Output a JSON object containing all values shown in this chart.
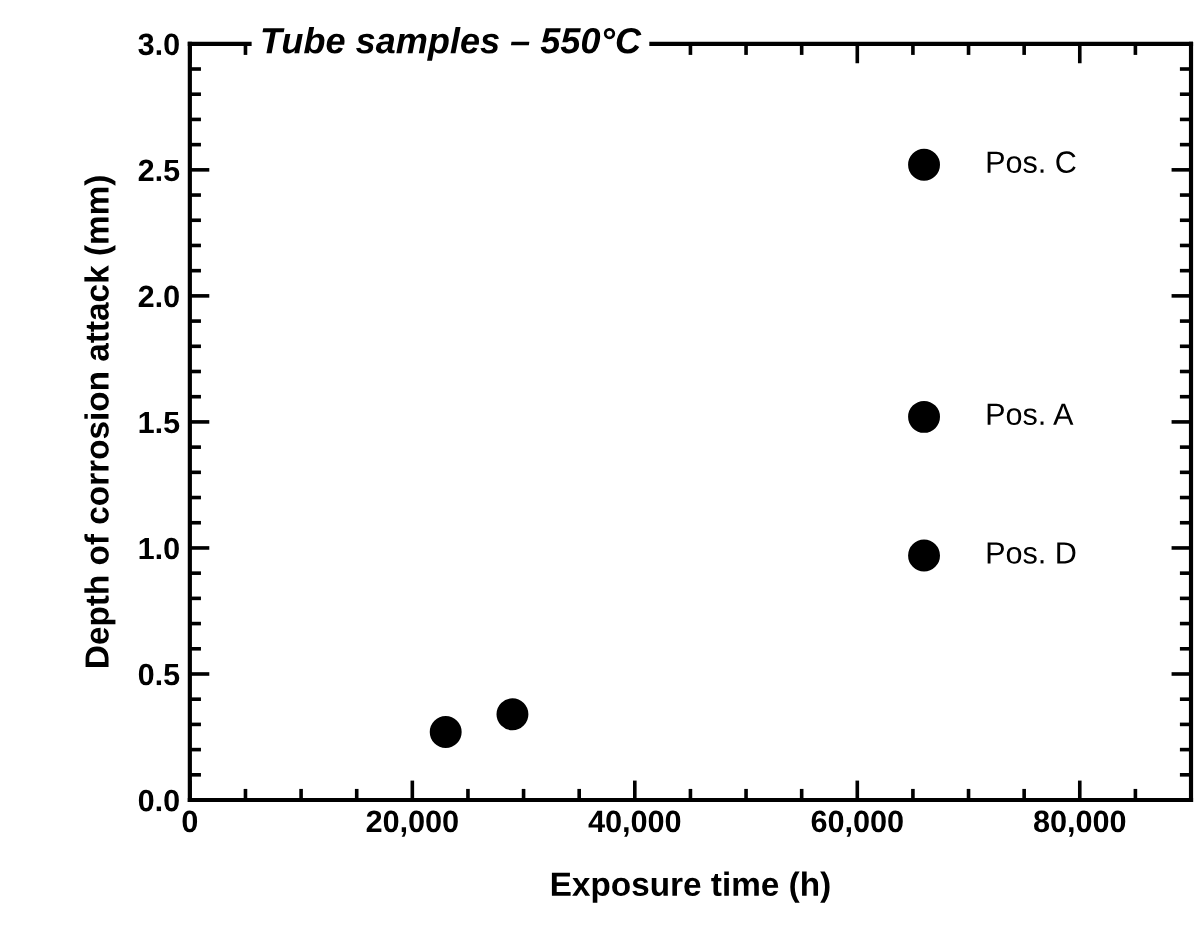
{
  "chart_data": {
    "type": "scatter",
    "title": "Tube samples – 550°C",
    "xlabel": "Exposure time (h)",
    "ylabel": "Depth of corrosion attack (mm)",
    "x": [
      23000,
      29000,
      66000,
      66000,
      66000
    ],
    "values": [
      0.27,
      0.34,
      2.52,
      1.52,
      0.97
    ],
    "value_labels": [
      null,
      null,
      "Pos. C",
      "Pos. A",
      "Pos. D"
    ],
    "color": "#000000",
    "marker": "circle",
    "xlim": [
      0,
      90000
    ],
    "ylim": [
      0,
      3.0
    ],
    "xticks": [
      0,
      {
        "value": 20000,
        "label": "20,000"
      },
      {
        "value": 40000,
        "label": "40,000"
      },
      {
        "value": 60000,
        "label": "60,000"
      },
      {
        "value": 80000,
        "label": "80,000"
      }
    ],
    "yticks": [
      {
        "value": 0,
        "label": "0.0"
      },
      0.5,
      {
        "value": 1,
        "label": "1.0"
      },
      1.5,
      {
        "value": 2,
        "label": "2.0"
      },
      2.5,
      {
        "value": 3,
        "label": "3.0"
      }
    ],
    "grid": false,
    "legend": false
  }
}
